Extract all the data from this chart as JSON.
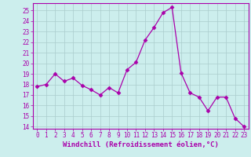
{
  "x": [
    0,
    1,
    2,
    3,
    4,
    5,
    6,
    7,
    8,
    9,
    10,
    11,
    12,
    13,
    14,
    15,
    16,
    17,
    18,
    19,
    20,
    21,
    22,
    23
  ],
  "y": [
    17.8,
    18.0,
    19.0,
    18.3,
    18.6,
    17.9,
    17.5,
    17.0,
    17.7,
    17.2,
    19.4,
    20.1,
    22.2,
    23.4,
    24.8,
    25.3,
    19.1,
    17.2,
    16.8,
    15.5,
    16.8,
    16.8,
    14.8,
    14.0
  ],
  "line_color": "#aa00aa",
  "marker": "D",
  "markersize": 2.5,
  "linewidth": 0.9,
  "background_color": "#cceeed",
  "grid_color": "#aacccc",
  "xlabel": "Windchill (Refroidissement éolien,°C)",
  "ylabel": "",
  "ylim": [
    13.8,
    25.7
  ],
  "xlim": [
    -0.5,
    23.5
  ],
  "yticks": [
    14,
    15,
    16,
    17,
    18,
    19,
    20,
    21,
    22,
    23,
    24,
    25
  ],
  "xticks": [
    0,
    1,
    2,
    3,
    4,
    5,
    6,
    7,
    8,
    9,
    10,
    11,
    12,
    13,
    14,
    15,
    16,
    17,
    18,
    19,
    20,
    21,
    22,
    23
  ],
  "tick_fontsize": 5.5,
  "xlabel_fontsize": 6.5
}
